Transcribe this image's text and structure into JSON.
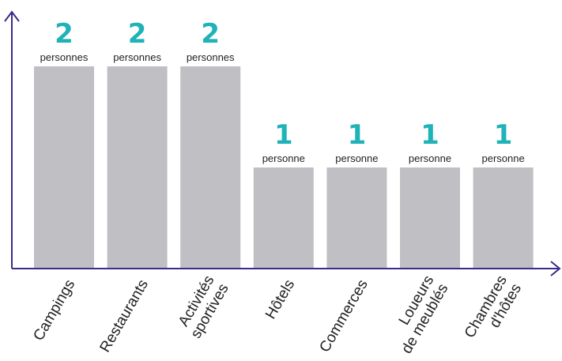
{
  "chart_data": {
    "type": "bar",
    "categories": [
      [
        "Campings"
      ],
      [
        "Restaurants"
      ],
      [
        "Activités",
        "sportives"
      ],
      [
        "Hôtels"
      ],
      [
        "Commerces"
      ],
      [
        "Loueurs",
        "de meublés"
      ],
      [
        "Chambres",
        "d'hôtes"
      ]
    ],
    "values": [
      2,
      2,
      2,
      1,
      1,
      1,
      1
    ],
    "value_units": [
      "personnes",
      "personnes",
      "personnes",
      "personne",
      "personne",
      "personne",
      "personne"
    ],
    "ylim": [
      0,
      2
    ],
    "grid": false,
    "legend": "none"
  },
  "colors": {
    "bar": "#c0c0c4",
    "accent": "#1fb3b8",
    "axis": "#3c2a8c"
  }
}
